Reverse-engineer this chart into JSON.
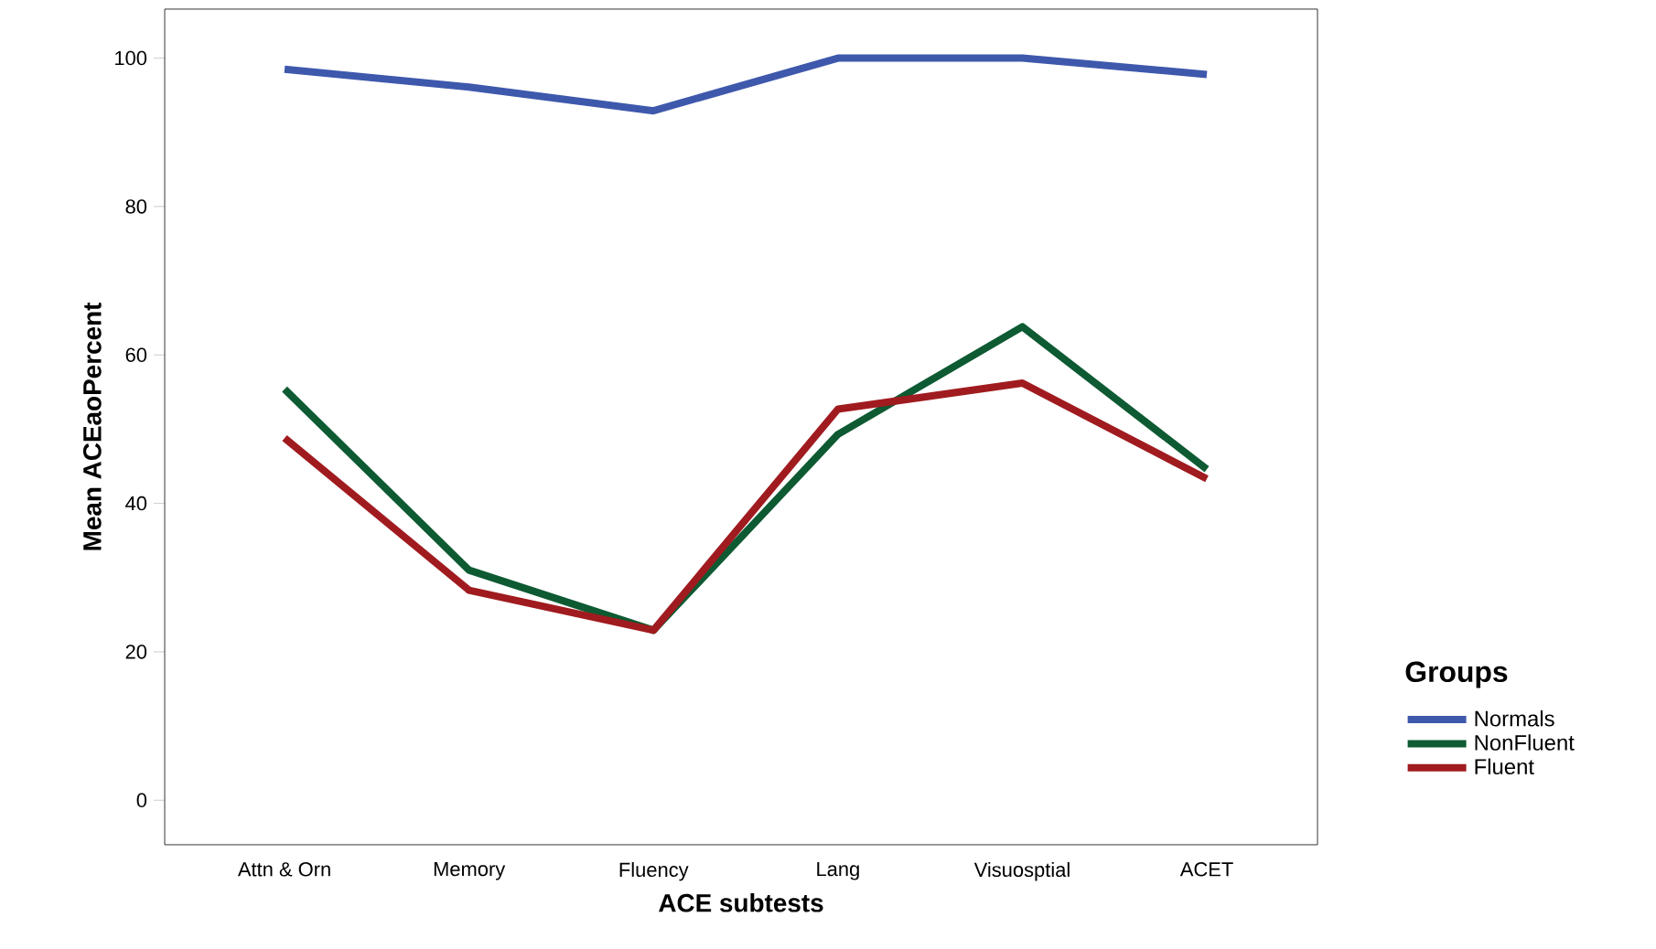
{
  "chart_data": {
    "type": "line",
    "xlabel": "ACE subtests",
    "ylabel": "Mean ACEaoPercent",
    "legend_title": "Groups",
    "legend": "right",
    "grid": false,
    "marker": "none",
    "line_style": "solid",
    "categories": [
      "Attn & Orn",
      "Memory",
      "Fluency",
      "Lang",
      "Visuosptial",
      "ACET"
    ],
    "ylim": [
      -6,
      106.6
    ],
    "yticks": [
      0,
      20,
      40,
      60,
      80,
      100
    ],
    "series": [
      {
        "name": "Normals",
        "color": "#3e58ac",
        "values": [
          98.5,
          96.1,
          92.9,
          100,
          100,
          97.8
        ]
      },
      {
        "name": "NonFluent",
        "color": "#0e5a32",
        "values": [
          55.4,
          31.0,
          22.9,
          49.3,
          63.8,
          44.6
        ]
      },
      {
        "name": "Fluent",
        "color": "#a01b1f",
        "values": [
          48.8,
          28.3,
          22.9,
          52.7,
          56.2,
          43.3
        ]
      }
    ]
  }
}
